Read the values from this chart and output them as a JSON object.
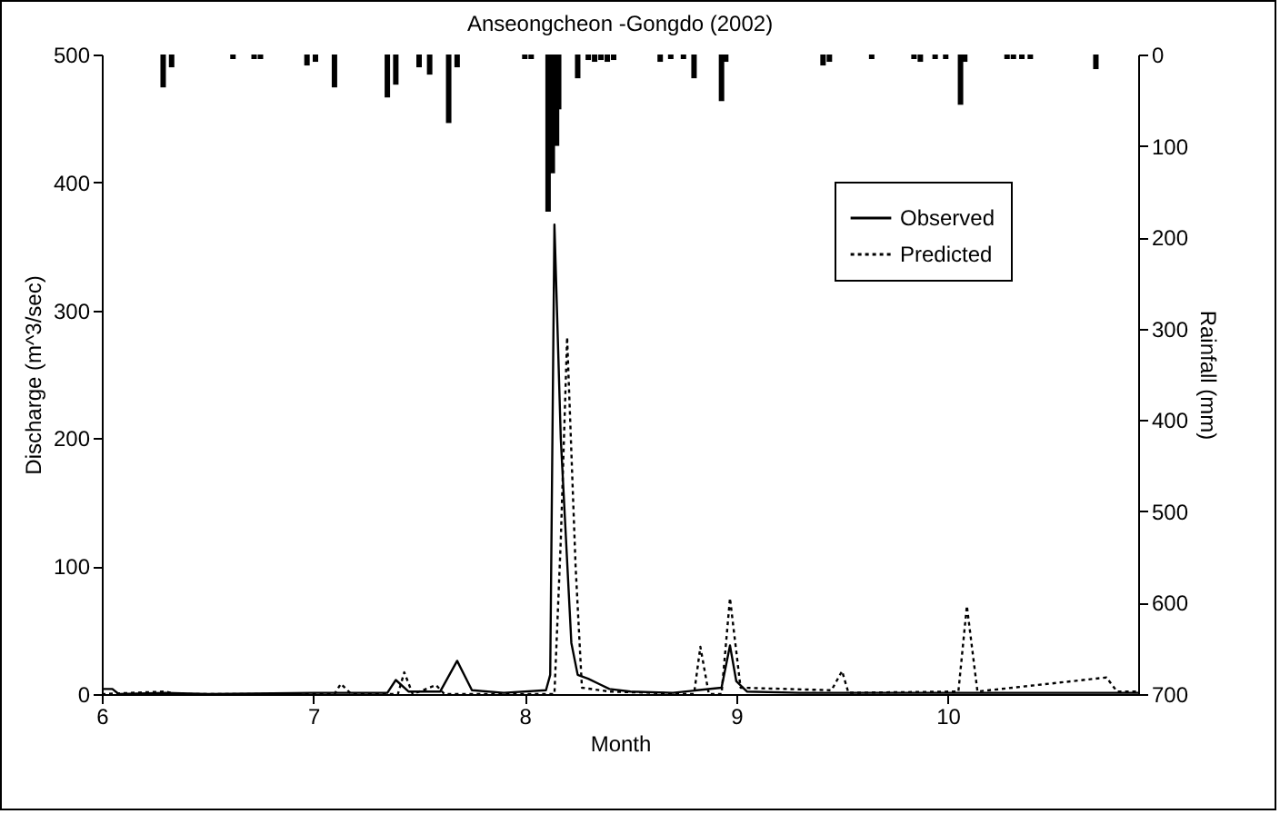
{
  "chart_data": {
    "type": "line",
    "title": "Anseongcheon -Gongdo (2002)",
    "xlabel": "Month",
    "ylabel": "Discharge (m^3/sec)",
    "y2label": "Rainfall (mm)",
    "xlim": [
      6,
      10.9
    ],
    "xticks": [
      6,
      7,
      8,
      9,
      10
    ],
    "ylim": [
      0,
      500
    ],
    "yticks": [
      0,
      100,
      200,
      300,
      400,
      500
    ],
    "y2lim": [
      700,
      0
    ],
    "y2ticks": [
      0,
      100,
      200,
      300,
      400,
      500,
      600,
      700
    ],
    "legend": "top right",
    "series": [
      {
        "name": "Observed",
        "color": "#000000",
        "line_style": "solid",
        "x": [
          6.0,
          6.05,
          6.08,
          6.3,
          6.5,
          7.0,
          7.35,
          7.39,
          7.45,
          7.6,
          7.68,
          7.75,
          7.9,
          8.1,
          8.12,
          8.14,
          8.17,
          8.22,
          8.25,
          8.3,
          8.35,
          8.4,
          8.5,
          8.7,
          8.93,
          8.97,
          9.0,
          9.05,
          9.3,
          10.0,
          10.9
        ],
        "values": [
          4,
          4,
          0,
          1,
          0,
          1,
          1,
          11,
          2,
          2,
          26,
          3,
          1,
          3,
          15,
          367,
          200,
          40,
          15,
          12,
          8,
          4,
          2,
          1,
          5,
          38,
          10,
          2,
          1,
          1,
          1
        ]
      },
      {
        "name": "Predicted",
        "color": "#000000",
        "line_style": "dotted",
        "x": [
          6.0,
          6.3,
          6.35,
          7.1,
          7.13,
          7.18,
          7.4,
          7.43,
          7.47,
          7.58,
          7.62,
          8.14,
          8.17,
          8.2,
          8.24,
          8.27,
          8.4,
          8.8,
          8.83,
          8.87,
          8.93,
          8.97,
          9.02,
          9.45,
          9.5,
          9.53,
          10.05,
          10.09,
          10.14,
          10.75,
          10.8,
          10.9
        ],
        "values": [
          0,
          2,
          0,
          0,
          8,
          0,
          0,
          17,
          0,
          7,
          0,
          0,
          120,
          279,
          100,
          5,
          2,
          0,
          37,
          0,
          0,
          75,
          5,
          3,
          18,
          1,
          2,
          69,
          2,
          13,
          2,
          2
        ]
      },
      {
        "type": "bar",
        "axis": "y2",
        "color": "#000000",
        "x": [
          6.29,
          6.33,
          6.62,
          6.72,
          6.75,
          6.97,
          7.01,
          7.1,
          7.35,
          7.39,
          7.5,
          7.55,
          7.64,
          7.68,
          8.0,
          8.03,
          8.11,
          8.13,
          8.15,
          8.16,
          8.25,
          8.3,
          8.33,
          8.36,
          8.39,
          8.42,
          8.64,
          8.69,
          8.75,
          8.8,
          8.93,
          8.95,
          9.41,
          9.44,
          9.64,
          9.84,
          9.87,
          9.94,
          9.99,
          10.06,
          10.08,
          10.28,
          10.31,
          10.35,
          10.39,
          10.7
        ],
        "values": [
          36,
          14,
          5,
          5,
          5,
          12,
          8,
          36,
          47,
          33,
          14,
          22,
          75,
          14,
          5,
          5,
          172,
          130,
          100,
          60,
          26,
          6,
          8,
          6,
          8,
          6,
          8,
          5,
          5,
          26,
          51,
          8,
          12,
          8,
          5,
          5,
          8,
          5,
          5,
          55,
          8,
          5,
          5,
          5,
          5,
          16
        ]
      }
    ]
  }
}
